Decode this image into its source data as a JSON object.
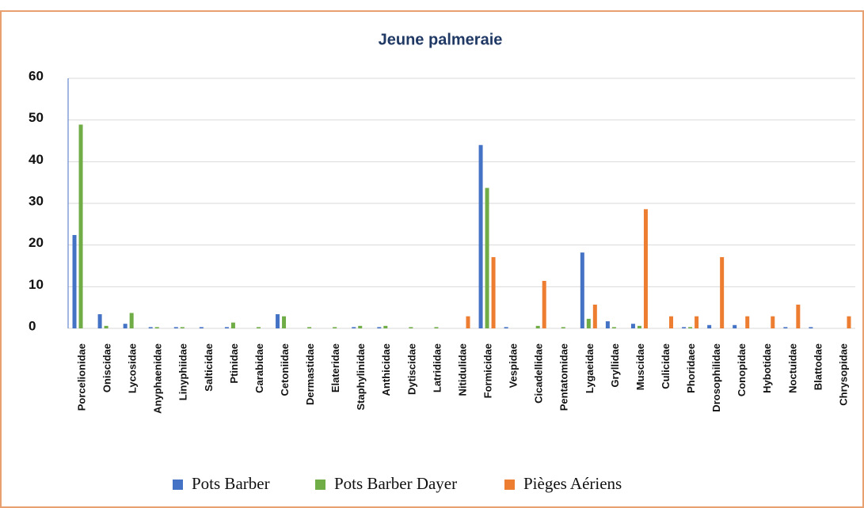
{
  "chart_data": {
    "type": "bar",
    "title": "Jeune palmeraie",
    "categories": [
      "Porcelionidae",
      "Oniscidae",
      "Lycosidae",
      "Anyphaenidae",
      "Linyphiidae",
      "Salticidae",
      "Ptinidae",
      "Carabidae",
      "Cetoniidae",
      "Dermastidae",
      "Elateridae",
      "Staphylinidae",
      "Anthicidae",
      "Dytiscidae",
      "Latrididae",
      "Nitidulidae",
      "Formicidae",
      "Vespidae",
      "Cicadellidae",
      "Pentatomidae",
      "Lygaeidae",
      "Gryllidae",
      "Muscidae",
      "Culicidae",
      "Phoridaee",
      "Drosophilidae",
      "Conopidae",
      "Hybotidae",
      "Noctuidae",
      "Blattodae",
      "Chrysopidae"
    ],
    "series": [
      {
        "name": "Pots Barber",
        "color": "#4472c4",
        "values": [
          22.4,
          3.4,
          1.1,
          0.3,
          0.3,
          0.3,
          0.3,
          0,
          3.4,
          0,
          0,
          0.3,
          0.3,
          0,
          0,
          0,
          44,
          0.3,
          0,
          0,
          18.2,
          1.7,
          1.1,
          0,
          0.3,
          0.8,
          0.8,
          0,
          0.3,
          0.3,
          0
        ]
      },
      {
        "name": "Pots Barber Dayer",
        "color": "#70ad47",
        "values": [
          48.9,
          0.6,
          3.7,
          0.3,
          0.3,
          0,
          1.4,
          0.3,
          2.9,
          0.3,
          0.3,
          0.6,
          0.6,
          0.3,
          0.3,
          0,
          33.7,
          0,
          0.6,
          0.3,
          2.3,
          0.3,
          0.6,
          0,
          0.3,
          0,
          0,
          0,
          0,
          0,
          0
        ]
      },
      {
        "name": "Pièges Aériens",
        "color": "#ed7d31",
        "values": [
          0,
          0,
          0,
          0,
          0,
          0,
          0,
          0,
          0,
          0,
          0,
          0,
          0,
          0,
          0,
          2.9,
          17.1,
          0,
          11.4,
          0,
          5.7,
          0,
          28.6,
          2.9,
          2.9,
          17.1,
          2.9,
          2.9,
          5.7,
          0,
          2.9
        ]
      }
    ],
    "ylim": [
      0,
      60
    ],
    "yticks": [
      0,
      10,
      20,
      30,
      40,
      50,
      60
    ],
    "grid": true
  }
}
